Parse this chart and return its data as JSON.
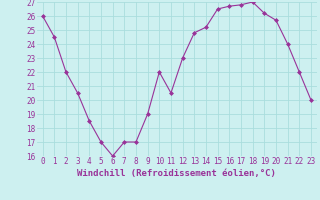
{
  "x": [
    0,
    1,
    2,
    3,
    4,
    5,
    6,
    7,
    8,
    9,
    10,
    11,
    12,
    13,
    14,
    15,
    16,
    17,
    18,
    19,
    20,
    21,
    22,
    23
  ],
  "y": [
    26,
    24.5,
    22,
    20.5,
    18.5,
    17,
    16,
    17,
    17,
    19,
    22,
    20.5,
    23,
    24.8,
    25.2,
    26.5,
    26.7,
    26.8,
    27,
    26.2,
    25.7,
    24,
    22,
    20
  ],
  "line_color": "#993399",
  "marker": "D",
  "markersize": 2.0,
  "linewidth": 0.8,
  "xlabel": "Windchill (Refroidissement éolien,°C)",
  "xlabel_fontsize": 6.5,
  "ylim": [
    16,
    27
  ],
  "xlim": [
    -0.5,
    23.5
  ],
  "yticks": [
    16,
    17,
    18,
    19,
    20,
    21,
    22,
    23,
    24,
    25,
    26,
    27
  ],
  "xticks": [
    0,
    1,
    2,
    3,
    4,
    5,
    6,
    7,
    8,
    9,
    10,
    11,
    12,
    13,
    14,
    15,
    16,
    17,
    18,
    19,
    20,
    21,
    22,
    23
  ],
  "xtick_labels": [
    "0",
    "1",
    "2",
    "3",
    "4",
    "5",
    "6",
    "7",
    "8",
    "9",
    "10",
    "11",
    "12",
    "13",
    "14",
    "15",
    "16",
    "17",
    "18",
    "19",
    "20",
    "21",
    "22",
    "23"
  ],
  "bg_color": "#cdf0f0",
  "grid_color": "#aadddd",
  "tick_color": "#993399",
  "tick_fontsize": 5.5,
  "marker_color": "#993399"
}
